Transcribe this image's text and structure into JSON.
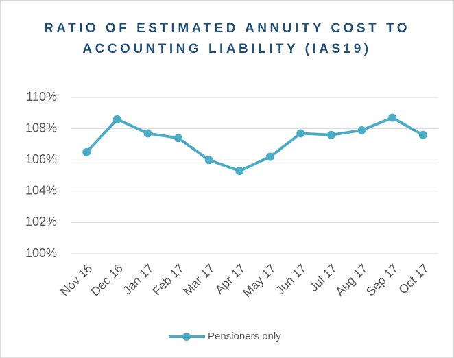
{
  "chart_data": {
    "type": "line",
    "title": "RATIO OF ESTIMATED ANNUITY COST TO ACCOUNTING LIABILITY (IAS19)",
    "categories": [
      "Nov 16",
      "Dec 16",
      "Jan 17",
      "Feb 17",
      "Mar 17",
      "Apr 17",
      "May 17",
      "Jun 17",
      "Jul 17",
      "Aug 17",
      "Sep 17",
      "Oct 17"
    ],
    "series": [
      {
        "name": "Pensioners only",
        "color": "#4bacc6",
        "values": [
          106.5,
          108.6,
          107.7,
          107.4,
          106.0,
          105.3,
          106.2,
          107.7,
          107.6,
          107.9,
          108.7,
          107.6
        ]
      }
    ],
    "ylim": [
      100,
      110
    ],
    "yticks": [
      {
        "value": 100,
        "label": "100%"
      },
      {
        "value": 102,
        "label": "102%"
      },
      {
        "value": 104,
        "label": "104%"
      },
      {
        "value": 106,
        "label": "106%"
      },
      {
        "value": 108,
        "label": "108%"
      },
      {
        "value": 110,
        "label": "110%"
      }
    ],
    "grid": true,
    "legend": "bottom"
  }
}
